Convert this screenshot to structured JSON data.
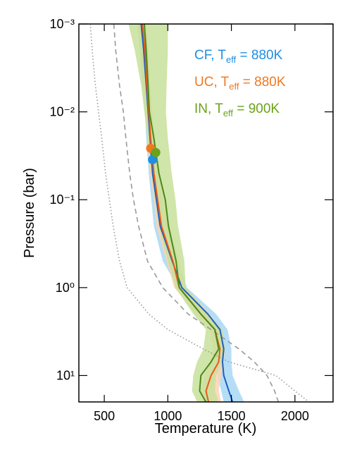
{
  "chart_data": {
    "type": "line",
    "x_label": "Temperature (K)",
    "y_label": "Pressure (bar)",
    "xlim": [
      300,
      2300
    ],
    "xticks": [
      500,
      1000,
      1500,
      2000
    ],
    "ylim": [
      0.001,
      20
    ],
    "y_log": true,
    "y_inverted": true,
    "yticks": [
      {
        "value": 0.001,
        "label": "10⁻³"
      },
      {
        "value": 0.01,
        "label": "10⁻²"
      },
      {
        "value": 0.1,
        "label": "10⁻¹"
      },
      {
        "value": 1,
        "label": "10⁰"
      },
      {
        "value": 10,
        "label": "10¹"
      }
    ],
    "y": [
      0.001,
      0.002,
      0.005,
      0.01,
      0.02,
      0.05,
      0.1,
      0.2,
      0.5,
      1,
      2,
      3,
      5,
      7,
      10,
      15,
      20
    ],
    "series": [
      {
        "dash": "dotted",
        "color": "#999999",
        "x": [
          390,
          405,
          430,
          455,
          480,
          510,
          540,
          570,
          620,
          680,
          850,
          1000,
          1280,
          1480,
          1850,
          2000,
          2110
        ]
      },
      {
        "dash": "dashed",
        "color": "#999999",
        "x": [
          575,
          590,
          620,
          650,
          670,
          700,
          730,
          770,
          840,
          960,
          1160,
          1340,
          1560,
          1680,
          1780,
          1840,
          1870
        ]
      },
      {
        "name": "CF, T",
        "name_sub": "eff",
        "name_end": " = 880K",
        "color": "#1f8fe0",
        "line_color": "#1f5fbf",
        "band_color": "#a8d8f5",
        "x": [
          790,
          810,
          830,
          845,
          860,
          880,
          910,
          940,
          1035,
          1110,
          1315,
          1410,
          1440,
          1430,
          1440,
          1480,
          1510
        ],
        "band_low": [
          760,
          780,
          800,
          820,
          830,
          850,
          870,
          890,
          960,
          1080,
          1270,
          1370,
          1390,
          1380,
          1390,
          1420,
          1440
        ],
        "band_high": [
          820,
          840,
          860,
          870,
          890,
          910,
          960,
          1010,
          1080,
          1150,
          1380,
          1470,
          1500,
          1500,
          1510,
          1560,
          1600
        ],
        "point": {
          "x": 880,
          "y": 0.035
        }
      },
      {
        "name": "UC, T",
        "name_sub": "eff",
        "name_end": " = 880K",
        "color": "#f07820",
        "line_color": "#e85a1a",
        "band_color": "#fcd3b4",
        "x": [
          800,
          820,
          835,
          850,
          865,
          890,
          920,
          950,
          1040,
          1090,
          1260,
          1370,
          1410,
          1400,
          1340,
          1300,
          1320
        ],
        "band_low": [
          770,
          790,
          810,
          825,
          840,
          860,
          890,
          910,
          990,
          1050,
          1220,
          1330,
          1360,
          1330,
          1290,
          1260,
          1280
        ],
        "band_high": [
          830,
          850,
          860,
          880,
          900,
          930,
          980,
          1010,
          1090,
          1140,
          1330,
          1420,
          1450,
          1440,
          1420,
          1400,
          1420
        ],
        "point": {
          "x": 865,
          "y": 0.026
        }
      },
      {
        "name": "IN, T",
        "name_sub": "eff",
        "name_end": " = 900K",
        "color": "#6aa21a",
        "line_color": "#4a8a1a",
        "band_color": "#c8e09a",
        "x": [
          815,
          830,
          845,
          855,
          890,
          930,
          980,
          1005,
          1065,
          1090,
          1260,
          1370,
          1400,
          1340,
          1260,
          1250,
          1300
        ],
        "band_low": [
          690,
          740,
          790,
          815,
          840,
          870,
          900,
          930,
          1000,
          1060,
          1200,
          1300,
          1280,
          1230,
          1200,
          1190,
          1230
        ],
        "band_high": [
          1000,
          1000,
          990,
          985,
          1000,
          1030,
          1060,
          1080,
          1130,
          1140,
          1320,
          1430,
          1450,
          1420,
          1380,
          1370,
          1400
        ],
        "point": {
          "x": 905,
          "y": 0.029
        }
      }
    ]
  }
}
